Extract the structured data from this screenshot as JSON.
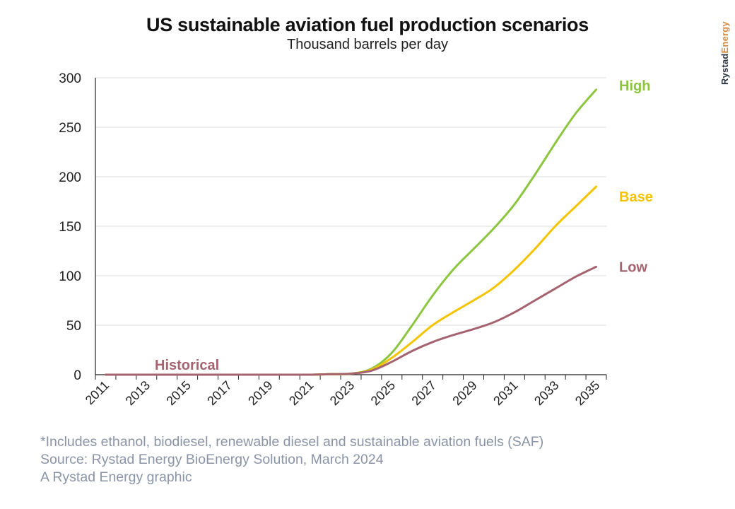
{
  "header": {
    "title": "US sustainable aviation fuel production scenarios",
    "subtitle": "Thousand barrels per day"
  },
  "brand": {
    "part1": "Rystad",
    "part2": "Energy"
  },
  "footer": {
    "note": "*Includes ethanol, biodiesel, renewable diesel and sustainable aviation fuels (SAF)",
    "source": "Source: Rystad Energy BioEnergy Solution, March 2024",
    "credit": "A Rystad Energy graphic"
  },
  "chart_data": {
    "type": "line",
    "title": "US sustainable aviation fuel production scenarios",
    "subtitle": "Thousand barrels per day",
    "xlabel": "",
    "ylabel": "",
    "xlim": [
      2011,
      2035
    ],
    "ylim": [
      0,
      300
    ],
    "yticks": [
      0,
      50,
      100,
      150,
      200,
      250,
      300
    ],
    "xticks": [
      2011,
      2013,
      2015,
      2017,
      2019,
      2021,
      2023,
      2025,
      2027,
      2029,
      2031,
      2033,
      2035
    ],
    "grid": true,
    "legend": "end-of-line labels",
    "annotations": [
      {
        "text": "Historical",
        "color": "#a5636f"
      }
    ],
    "x": [
      2011,
      2012,
      2013,
      2014,
      2015,
      2016,
      2017,
      2018,
      2019,
      2020,
      2021,
      2022,
      2023,
      2024,
      2025,
      2026,
      2027,
      2028,
      2029,
      2030,
      2031,
      2032,
      2033,
      2034,
      2035
    ],
    "series": [
      {
        "name": "High",
        "color": "#8cc63f",
        "values": [
          0,
          0,
          0,
          0,
          0,
          0,
          0,
          0,
          0,
          0,
          0,
          0.5,
          1,
          6,
          22,
          50,
          80,
          106,
          127,
          148,
          172,
          202,
          234,
          264,
          288
        ]
      },
      {
        "name": "Base",
        "color": "#f5c400",
        "values": [
          0,
          0,
          0,
          0,
          0,
          0,
          0,
          0,
          0,
          0,
          0,
          0.5,
          1,
          5,
          17,
          33,
          50,
          63,
          75,
          88,
          106,
          127,
          150,
          170,
          190
        ]
      },
      {
        "name": "Low",
        "color": "#a5636f",
        "values": [
          0,
          0,
          0,
          0,
          0,
          0,
          0,
          0,
          0,
          0,
          0,
          0.5,
          1,
          4,
          13,
          24,
          33,
          40,
          46,
          53,
          63,
          75,
          87,
          99,
          109
        ]
      }
    ]
  }
}
